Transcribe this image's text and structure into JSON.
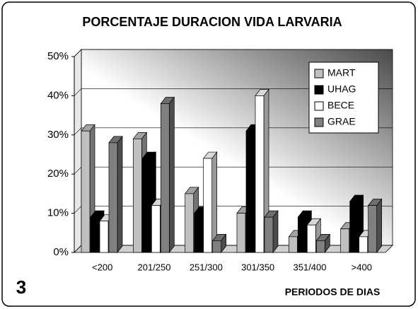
{
  "chart_data": {
    "type": "bar3d",
    "title": "PORCENTAJE DURACION VIDA LARVARIA",
    "figure_label": "3",
    "x_label": "PERIODOS DE DIAS",
    "categories": [
      "<200",
      "201/250",
      "251/300",
      "301/350",
      "351/400",
      ">400"
    ],
    "series": [
      {
        "name": "MART",
        "color": "#c0c0c0",
        "values": [
          31,
          29,
          15,
          10,
          4,
          6
        ]
      },
      {
        "name": "UHAG",
        "color": "#000000",
        "values": [
          9,
          24,
          10,
          31,
          9,
          13
        ]
      },
      {
        "name": "BECE",
        "color": "#ffffff",
        "values": [
          8,
          12,
          24,
          40,
          7,
          4
        ]
      },
      {
        "name": "GRAE",
        "color": "#808080",
        "values": [
          28,
          38,
          3,
          9,
          3,
          12
        ]
      }
    ],
    "ylim": [
      0,
      50
    ],
    "yticks": [
      {
        "value": 0,
        "label": "0%"
      },
      {
        "value": 10,
        "label": "10%"
      },
      {
        "value": 20,
        "label": "20%"
      },
      {
        "value": 30,
        "label": "30%"
      },
      {
        "value": 40,
        "label": "40%"
      },
      {
        "value": 50,
        "label": "50%"
      }
    ],
    "grid": true,
    "legend": "upper right"
  }
}
